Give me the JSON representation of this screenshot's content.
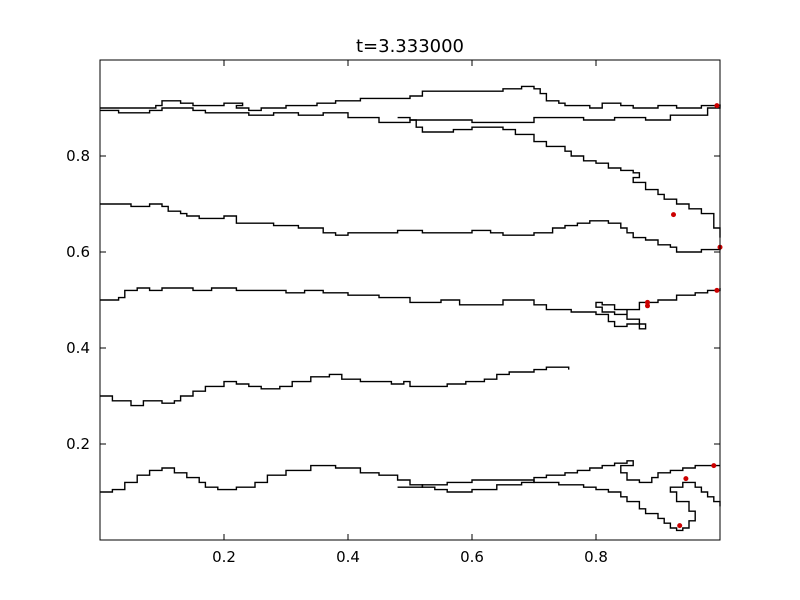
{
  "chart_data": {
    "type": "line",
    "title": "t=3.333000",
    "xlabel": "",
    "ylabel": "",
    "xlim": [
      0.0,
      1.0
    ],
    "ylim": [
      0.0,
      1.0
    ],
    "x_ticks": [
      0.2,
      0.4,
      0.6,
      0.8
    ],
    "y_ticks": [
      0.2,
      0.4,
      0.6,
      0.8
    ],
    "x_tick_labels": [
      "0.2",
      "0.4",
      "0.6",
      "0.8"
    ],
    "y_tick_labels": [
      "0.2",
      "0.4",
      "0.6",
      "0.8"
    ],
    "grid": false,
    "line_color": "#000000",
    "marker_color": "#cc0000",
    "series": [
      {
        "points": [
          [
            0.0,
            0.895
          ],
          [
            0.03,
            0.89
          ],
          [
            0.08,
            0.895
          ],
          [
            0.1,
            0.9
          ],
          [
            0.12,
            0.9
          ],
          [
            0.15,
            0.895
          ],
          [
            0.17,
            0.89
          ],
          [
            0.2,
            0.89
          ],
          [
            0.24,
            0.885
          ],
          [
            0.28,
            0.89
          ],
          [
            0.32,
            0.885
          ],
          [
            0.36,
            0.89
          ],
          [
            0.4,
            0.88
          ],
          [
            0.45,
            0.87
          ],
          [
            0.5,
            0.875
          ],
          [
            0.55,
            0.875
          ],
          [
            0.6,
            0.87
          ],
          [
            0.66,
            0.87
          ],
          [
            0.7,
            0.88
          ],
          [
            0.74,
            0.88
          ],
          [
            0.78,
            0.875
          ],
          [
            0.81,
            0.875
          ],
          [
            0.83,
            0.88
          ],
          [
            0.86,
            0.88
          ],
          [
            0.88,
            0.875
          ],
          [
            0.92,
            0.885
          ],
          [
            0.95,
            0.885
          ],
          [
            0.98,
            0.9
          ],
          [
            1.0,
            0.905
          ]
        ]
      },
      {
        "points": [
          [
            0.0,
            0.9
          ],
          [
            0.05,
            0.9
          ],
          [
            0.09,
            0.905
          ],
          [
            0.1,
            0.915
          ],
          [
            0.13,
            0.91
          ],
          [
            0.15,
            0.905
          ],
          [
            0.18,
            0.905
          ],
          [
            0.2,
            0.91
          ],
          [
            0.22,
            0.91
          ],
          [
            0.23,
            0.905
          ],
          [
            0.22,
            0.9
          ],
          [
            0.24,
            0.895
          ],
          [
            0.26,
            0.9
          ],
          [
            0.3,
            0.905
          ],
          [
            0.35,
            0.91
          ],
          [
            0.38,
            0.915
          ],
          [
            0.42,
            0.92
          ],
          [
            0.46,
            0.92
          ],
          [
            0.5,
            0.925
          ],
          [
            0.52,
            0.935
          ],
          [
            0.55,
            0.935
          ],
          [
            0.58,
            0.935
          ],
          [
            0.6,
            0.935
          ],
          [
            0.63,
            0.935
          ],
          [
            0.65,
            0.94
          ],
          [
            0.68,
            0.945
          ],
          [
            0.7,
            0.94
          ],
          [
            0.71,
            0.93
          ],
          [
            0.72,
            0.915
          ],
          [
            0.74,
            0.91
          ],
          [
            0.75,
            0.905
          ],
          [
            0.77,
            0.905
          ],
          [
            0.79,
            0.9
          ],
          [
            0.81,
            0.91
          ],
          [
            0.84,
            0.905
          ],
          [
            0.86,
            0.9
          ],
          [
            0.88,
            0.9
          ],
          [
            0.9,
            0.905
          ],
          [
            0.93,
            0.9
          ],
          [
            0.97,
            0.905
          ],
          [
            0.99,
            0.905
          ],
          [
            1.0,
            0.908
          ]
        ]
      },
      {
        "points": [
          [
            0.48,
            0.88
          ],
          [
            0.5,
            0.875
          ],
          [
            0.51,
            0.86
          ],
          [
            0.52,
            0.85
          ],
          [
            0.55,
            0.85
          ],
          [
            0.57,
            0.855
          ],
          [
            0.6,
            0.86
          ],
          [
            0.63,
            0.86
          ],
          [
            0.65,
            0.855
          ],
          [
            0.67,
            0.845
          ],
          [
            0.7,
            0.83
          ],
          [
            0.72,
            0.82
          ],
          [
            0.74,
            0.82
          ],
          [
            0.75,
            0.81
          ],
          [
            0.76,
            0.8
          ],
          [
            0.78,
            0.79
          ],
          [
            0.8,
            0.785
          ],
          [
            0.82,
            0.775
          ],
          [
            0.84,
            0.77
          ],
          [
            0.86,
            0.765
          ],
          [
            0.87,
            0.755
          ],
          [
            0.86,
            0.745
          ],
          [
            0.88,
            0.73
          ],
          [
            0.9,
            0.72
          ],
          [
            0.91,
            0.71
          ],
          [
            0.93,
            0.7
          ],
          [
            0.95,
            0.69
          ],
          [
            0.97,
            0.68
          ],
          [
            0.99,
            0.65
          ],
          [
            1.0,
            0.63
          ]
        ]
      },
      {
        "points": [
          [
            0.0,
            0.7
          ],
          [
            0.02,
            0.7
          ],
          [
            0.05,
            0.695
          ],
          [
            0.08,
            0.7
          ],
          [
            0.1,
            0.695
          ],
          [
            0.11,
            0.685
          ],
          [
            0.13,
            0.68
          ],
          [
            0.14,
            0.675
          ],
          [
            0.16,
            0.67
          ],
          [
            0.18,
            0.67
          ],
          [
            0.2,
            0.675
          ],
          [
            0.22,
            0.66
          ],
          [
            0.25,
            0.66
          ],
          [
            0.28,
            0.655
          ],
          [
            0.32,
            0.65
          ],
          [
            0.36,
            0.64
          ],
          [
            0.38,
            0.635
          ],
          [
            0.4,
            0.64
          ],
          [
            0.44,
            0.64
          ],
          [
            0.48,
            0.645
          ],
          [
            0.52,
            0.64
          ],
          [
            0.56,
            0.64
          ],
          [
            0.6,
            0.645
          ],
          [
            0.63,
            0.64
          ],
          [
            0.65,
            0.635
          ],
          [
            0.68,
            0.635
          ],
          [
            0.7,
            0.64
          ],
          [
            0.73,
            0.65
          ],
          [
            0.75,
            0.655
          ],
          [
            0.77,
            0.66
          ],
          [
            0.79,
            0.665
          ],
          [
            0.81,
            0.665
          ],
          [
            0.82,
            0.66
          ],
          [
            0.84,
            0.65
          ],
          [
            0.85,
            0.64
          ],
          [
            0.86,
            0.63
          ],
          [
            0.88,
            0.625
          ],
          [
            0.9,
            0.615
          ],
          [
            0.92,
            0.61
          ],
          [
            0.93,
            0.6
          ],
          [
            0.95,
            0.6
          ],
          [
            0.97,
            0.605
          ],
          [
            1.0,
            0.61
          ]
        ]
      },
      {
        "points": [
          [
            0.0,
            0.5
          ],
          [
            0.03,
            0.505
          ],
          [
            0.04,
            0.52
          ],
          [
            0.06,
            0.525
          ],
          [
            0.08,
            0.52
          ],
          [
            0.1,
            0.525
          ],
          [
            0.13,
            0.525
          ],
          [
            0.15,
            0.52
          ],
          [
            0.18,
            0.525
          ],
          [
            0.22,
            0.52
          ],
          [
            0.26,
            0.52
          ],
          [
            0.3,
            0.515
          ],
          [
            0.33,
            0.52
          ],
          [
            0.36,
            0.515
          ],
          [
            0.4,
            0.51
          ],
          [
            0.45,
            0.505
          ],
          [
            0.5,
            0.495
          ],
          [
            0.52,
            0.495
          ],
          [
            0.55,
            0.5
          ],
          [
            0.58,
            0.49
          ],
          [
            0.62,
            0.49
          ],
          [
            0.65,
            0.5
          ],
          [
            0.68,
            0.5
          ],
          [
            0.7,
            0.49
          ],
          [
            0.72,
            0.48
          ],
          [
            0.76,
            0.475
          ],
          [
            0.8,
            0.47
          ],
          [
            0.82,
            0.455
          ],
          [
            0.83,
            0.445
          ],
          [
            0.85,
            0.45
          ],
          [
            0.88,
            0.44
          ],
          [
            0.87,
            0.46
          ],
          [
            0.85,
            0.48
          ],
          [
            0.83,
            0.49
          ],
          [
            0.81,
            0.495
          ],
          [
            0.8,
            0.485
          ],
          [
            0.81,
            0.475
          ],
          [
            0.83,
            0.47
          ],
          [
            0.85,
            0.48
          ],
          [
            0.87,
            0.495
          ],
          [
            0.9,
            0.5
          ],
          [
            0.93,
            0.51
          ],
          [
            0.96,
            0.515
          ],
          [
            0.98,
            0.52
          ],
          [
            1.0,
            0.525
          ]
        ]
      },
      {
        "points": [
          [
            0.0,
            0.3
          ],
          [
            0.02,
            0.29
          ],
          [
            0.05,
            0.28
          ],
          [
            0.07,
            0.29
          ],
          [
            0.1,
            0.285
          ],
          [
            0.12,
            0.29
          ],
          [
            0.13,
            0.3
          ],
          [
            0.15,
            0.31
          ],
          [
            0.17,
            0.32
          ],
          [
            0.2,
            0.33
          ],
          [
            0.22,
            0.325
          ],
          [
            0.24,
            0.32
          ],
          [
            0.26,
            0.315
          ],
          [
            0.29,
            0.32
          ],
          [
            0.31,
            0.33
          ],
          [
            0.34,
            0.34
          ],
          [
            0.37,
            0.345
          ],
          [
            0.39,
            0.335
          ],
          [
            0.42,
            0.33
          ],
          [
            0.45,
            0.33
          ],
          [
            0.47,
            0.325
          ],
          [
            0.49,
            0.33
          ],
          [
            0.5,
            0.32
          ],
          [
            0.53,
            0.32
          ],
          [
            0.56,
            0.325
          ],
          [
            0.59,
            0.33
          ],
          [
            0.62,
            0.335
          ],
          [
            0.64,
            0.345
          ],
          [
            0.66,
            0.35
          ],
          [
            0.7,
            0.355
          ],
          [
            0.72,
            0.36
          ],
          [
            0.75,
            0.36
          ],
          [
            0.756,
            0.355
          ]
        ]
      },
      {
        "points": [
          [
            0.0,
            0.1
          ],
          [
            0.02,
            0.105
          ],
          [
            0.04,
            0.12
          ],
          [
            0.06,
            0.135
          ],
          [
            0.08,
            0.145
          ],
          [
            0.1,
            0.15
          ],
          [
            0.12,
            0.14
          ],
          [
            0.14,
            0.13
          ],
          [
            0.16,
            0.12
          ],
          [
            0.17,
            0.11
          ],
          [
            0.19,
            0.105
          ],
          [
            0.22,
            0.11
          ],
          [
            0.25,
            0.12
          ],
          [
            0.27,
            0.135
          ],
          [
            0.3,
            0.145
          ],
          [
            0.34,
            0.155
          ],
          [
            0.38,
            0.15
          ],
          [
            0.42,
            0.14
          ],
          [
            0.45,
            0.135
          ],
          [
            0.48,
            0.125
          ],
          [
            0.5,
            0.115
          ],
          [
            0.52,
            0.11
          ],
          [
            0.54,
            0.105
          ],
          [
            0.56,
            0.1
          ],
          [
            0.6,
            0.105
          ],
          [
            0.64,
            0.115
          ],
          [
            0.68,
            0.12
          ],
          [
            0.7,
            0.13
          ],
          [
            0.72,
            0.135
          ],
          [
            0.75,
            0.14
          ],
          [
            0.77,
            0.145
          ],
          [
            0.79,
            0.15
          ],
          [
            0.81,
            0.155
          ],
          [
            0.83,
            0.16
          ],
          [
            0.85,
            0.165
          ],
          [
            0.86,
            0.155
          ],
          [
            0.84,
            0.14
          ],
          [
            0.85,
            0.125
          ],
          [
            0.87,
            0.12
          ],
          [
            0.89,
            0.13
          ],
          [
            0.9,
            0.14
          ],
          [
            0.92,
            0.145
          ],
          [
            0.94,
            0.15
          ],
          [
            0.96,
            0.155
          ],
          [
            0.98,
            0.155
          ],
          [
            1.0,
            0.155
          ]
        ]
      },
      {
        "points": [
          [
            0.48,
            0.11
          ],
          [
            0.52,
            0.115
          ],
          [
            0.56,
            0.12
          ],
          [
            0.6,
            0.125
          ],
          [
            0.65,
            0.125
          ],
          [
            0.7,
            0.12
          ],
          [
            0.74,
            0.115
          ],
          [
            0.78,
            0.11
          ],
          [
            0.8,
            0.105
          ],
          [
            0.82,
            0.1
          ],
          [
            0.84,
            0.09
          ],
          [
            0.85,
            0.08
          ],
          [
            0.87,
            0.065
          ],
          [
            0.88,
            0.055
          ],
          [
            0.9,
            0.045
          ],
          [
            0.91,
            0.035
          ],
          [
            0.92,
            0.025
          ],
          [
            0.93,
            0.02
          ],
          [
            0.94,
            0.025
          ],
          [
            0.95,
            0.04
          ],
          [
            0.96,
            0.06
          ],
          [
            0.95,
            0.08
          ],
          [
            0.93,
            0.1
          ],
          [
            0.92,
            0.11
          ],
          [
            0.94,
            0.12
          ],
          [
            0.96,
            0.11
          ],
          [
            0.97,
            0.1
          ],
          [
            0.98,
            0.09
          ],
          [
            0.99,
            0.08
          ],
          [
            1.0,
            0.07
          ]
        ]
      }
    ],
    "markers": [
      [
        0.995,
        0.905
      ],
      [
        0.925,
        0.678
      ],
      [
        1.0,
        0.61
      ],
      [
        0.883,
        0.495
      ],
      [
        0.883,
        0.488
      ],
      [
        0.995,
        0.52
      ],
      [
        0.945,
        0.128
      ],
      [
        0.99,
        0.155
      ],
      [
        0.935,
        0.03
      ]
    ]
  }
}
